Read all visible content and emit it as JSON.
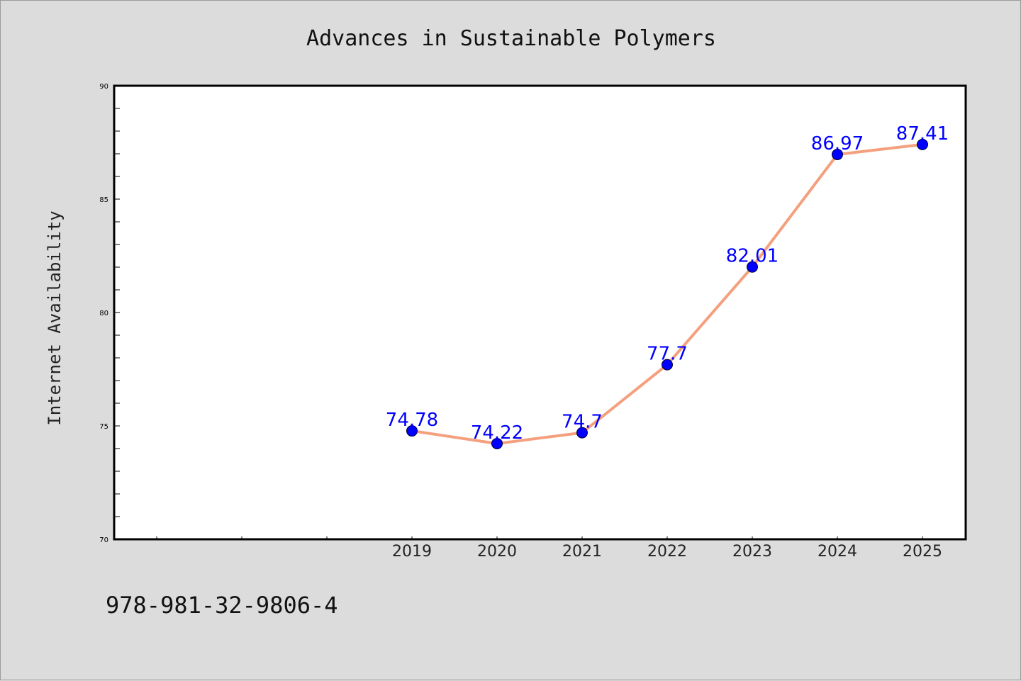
{
  "chart_data": {
    "type": "line",
    "title": "Advances in Sustainable Polymers",
    "xlabel": "",
    "ylabel": "Internet Availability",
    "categories": [
      "2019",
      "2020",
      "2021",
      "2022",
      "2023",
      "2024",
      "2025"
    ],
    "series": [
      {
        "values": [
          74.78,
          74.22,
          74.7,
          77.7,
          82.01,
          86.97,
          87.41
        ]
      }
    ],
    "data_labels": [
      "74.78",
      "74.22",
      "74.7",
      "77.7",
      "82.01",
      "86.97",
      "87.41"
    ],
    "ylim": [
      70,
      90
    ],
    "yticks": [
      "70",
      "75",
      "80",
      "85",
      "90"
    ],
    "grid": false,
    "colors": {
      "line": "#f4a07e",
      "marker": "#0000ff",
      "label": "#0000ff"
    }
  },
  "footer_code": "978-981-32-9806-4"
}
